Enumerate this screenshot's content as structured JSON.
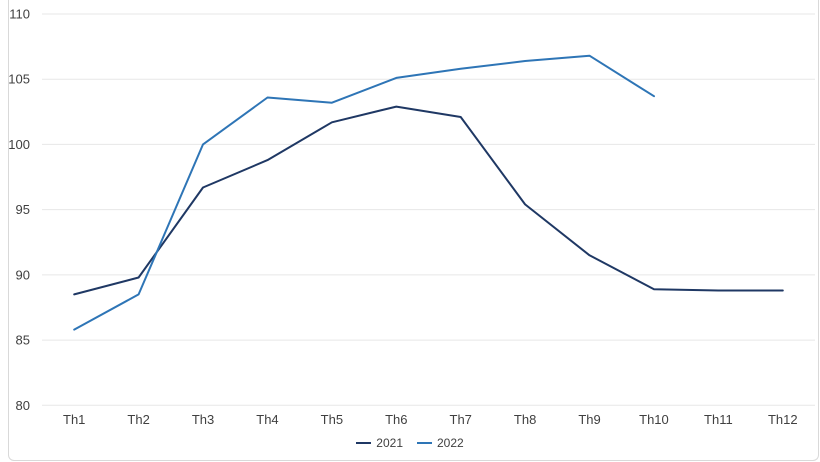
{
  "chart_data": {
    "type": "line",
    "title": "",
    "xlabel": "",
    "ylabel": "",
    "categories": [
      "Th1",
      "Th2",
      "Th3",
      "Th4",
      "Th5",
      "Th6",
      "Th7",
      "Th8",
      "Th9",
      "Th10",
      "Th11",
      "Th12"
    ],
    "series": [
      {
        "name": "2021",
        "color": "#1f3864",
        "values": [
          88.5,
          89.8,
          96.7,
          98.8,
          101.7,
          102.9,
          102.1,
          95.4,
          91.5,
          88.9,
          88.8,
          88.8
        ]
      },
      {
        "name": "2022",
        "color": "#2e75b6",
        "values": [
          85.8,
          88.5,
          100.0,
          103.6,
          103.2,
          105.1,
          105.8,
          106.4,
          106.8,
          103.7
        ]
      }
    ],
    "ylim": [
      80,
      110
    ],
    "yticks": [
      80,
      85,
      90,
      95,
      100,
      105,
      110
    ],
    "grid": true,
    "legend_position": "bottom"
  },
  "style": {
    "gridline_color": "#e7e7e7",
    "tick_label_color": "#404040",
    "frame_color": "#d9d9d9",
    "background": "#ffffff"
  }
}
